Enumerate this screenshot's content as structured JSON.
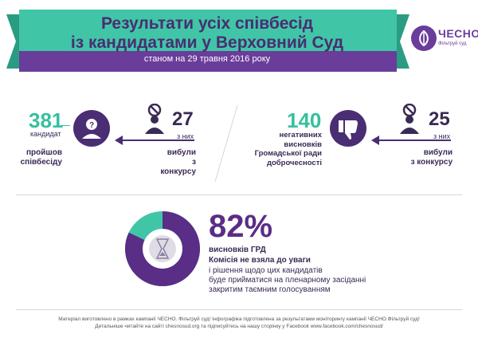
{
  "header": {
    "title_line1": "Результати усіх співбесід",
    "title_line2": "із кандидатами у Верховний Суд",
    "subtitle": "станом на 29 травня 2016 року"
  },
  "logo": {
    "name": "ЧЕСНО",
    "tagline": "Фільтруй суд"
  },
  "left_block": {
    "number": "381",
    "number_label": "кандидат",
    "caption_line1": "пройшов",
    "caption_line2": "співбесіду",
    "out_number": "27",
    "out_label": "з них",
    "out_caption_line1": "вибули",
    "out_caption_line2": "з конкурсу"
  },
  "right_block": {
    "number": "140",
    "caption_line1": "негативних",
    "caption_line2": "висновків",
    "caption_line3": "Громадської ради",
    "caption_line4": "доброчесності",
    "out_number": "25",
    "out_label": "з них",
    "out_caption_line1": "вибули",
    "out_caption_line2": "з конкурсу"
  },
  "bottom_block": {
    "percent": "82%",
    "percent_value": 82,
    "line1": "висновків ГРД",
    "line2": "Комісія не взяла до уваги",
    "line3": "і рішення щодо цих кандидатів",
    "line4": "буде прийматися на пленарному засіданні",
    "line5": "закритим таємним голосуванням"
  },
  "footer": {
    "line1": "Матеріал виготовлено в рамках кампанії ЧЕСНО. Фільтруй суд! Інфографіка підготовлена за результатами моніторингу кампанії ЧЕСНО.Фільтруй суд!",
    "line2": "Детальніше читайте на сайті chesnosud.org та підписуйтесь на нашу сторінку у Facebook www.facebook.com/chesnosud/"
  },
  "colors": {
    "purple": "#4a2d73",
    "teal": "#35c0a0",
    "light_purple": "#6a3d9a"
  }
}
